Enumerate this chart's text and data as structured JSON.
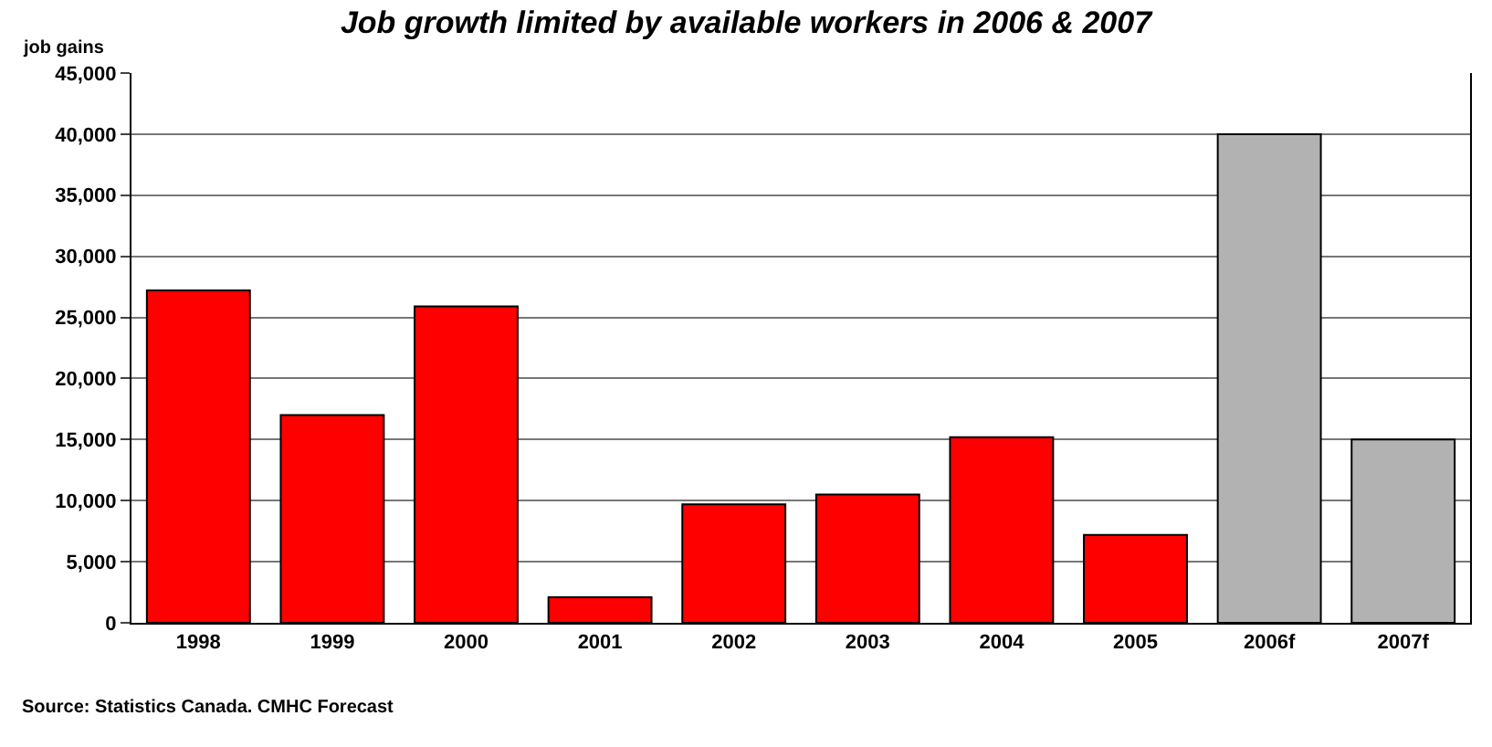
{
  "chart_data": {
    "type": "bar",
    "title": "Job growth limited by available workers in 2006 & 2007",
    "ylabel": "job gains",
    "categories": [
      "1998",
      "1999",
      "2000",
      "2001",
      "2002",
      "2003",
      "2004",
      "2005",
      "2006f",
      "2007f"
    ],
    "values": [
      27200,
      17000,
      25900,
      2100,
      9700,
      10500,
      15200,
      7200,
      40000,
      15000
    ],
    "colors": [
      "#ff0000",
      "#ff0000",
      "#ff0000",
      "#ff0000",
      "#ff0000",
      "#ff0000",
      "#ff0000",
      "#ff0000",
      "#b2b2b2",
      "#b2b2b2"
    ],
    "ylim": [
      0,
      45000
    ],
    "yticks": [
      {
        "value": 0,
        "label": "0"
      },
      {
        "value": 5000,
        "label": "5,000"
      },
      {
        "value": 10000,
        "label": "10,000"
      },
      {
        "value": 15000,
        "label": "15,000"
      },
      {
        "value": 20000,
        "label": "20,000"
      },
      {
        "value": 25000,
        "label": "25,000"
      },
      {
        "value": 30000,
        "label": "30,000"
      },
      {
        "value": 35000,
        "label": "35,000"
      },
      {
        "value": 40000,
        "label": "40,000"
      },
      {
        "value": 45000,
        "label": "45,000"
      }
    ],
    "grid": "y",
    "legend": false,
    "annotations": [
      "Source: Statistics Canada. CMHC Forecast"
    ]
  }
}
